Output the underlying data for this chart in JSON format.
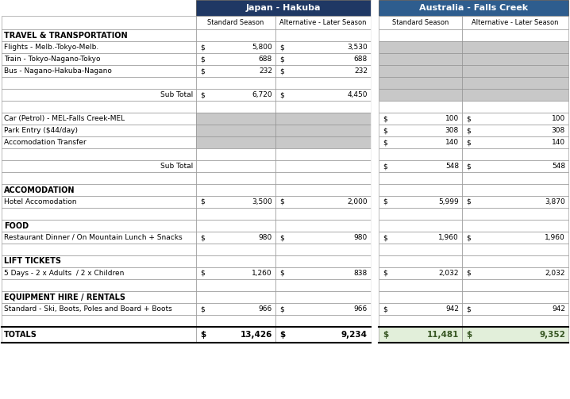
{
  "title_hakuba": "Japan - Hakuba",
  "title_falls": "Australia - Falls Creek",
  "col_headers": [
    "Standard Season",
    "Alternative - Later Season"
  ],
  "header_bg_hakuba": "#1F3864",
  "header_bg_falls": "#2E5D8E",
  "rows": [
    {
      "label": "TRAVEL & TRANSPORTATION",
      "bold": true,
      "hakuba_std": "",
      "hakuba_alt": "",
      "falls_std": "",
      "falls_alt": "",
      "hakuba_grey": false,
      "falls_grey": false,
      "right_label": false,
      "is_total": false,
      "is_subtotal": false,
      "top_border": false
    },
    {
      "label": "Flights - Melb.-Tokyo-Melb.",
      "bold": false,
      "hakuba_std": "5,800",
      "hakuba_alt": "3,530",
      "falls_std": "",
      "falls_alt": "",
      "hakuba_grey": false,
      "falls_grey": true,
      "right_label": false,
      "is_total": false,
      "is_subtotal": false,
      "top_border": false
    },
    {
      "label": "Train - Tokyo-Nagano-Tokyo",
      "bold": false,
      "hakuba_std": "688",
      "hakuba_alt": "688",
      "falls_std": "",
      "falls_alt": "",
      "hakuba_grey": false,
      "falls_grey": true,
      "right_label": false,
      "is_total": false,
      "is_subtotal": false,
      "top_border": false
    },
    {
      "label": "Bus - Nagano-Hakuba-Nagano",
      "bold": false,
      "hakuba_std": "232",
      "hakuba_alt": "232",
      "falls_std": "",
      "falls_alt": "",
      "hakuba_grey": false,
      "falls_grey": true,
      "right_label": false,
      "is_total": false,
      "is_subtotal": false,
      "top_border": false
    },
    {
      "label": "",
      "bold": false,
      "hakuba_std": "",
      "hakuba_alt": "",
      "falls_std": "",
      "falls_alt": "",
      "hakuba_grey": false,
      "falls_grey": true,
      "right_label": false,
      "is_total": false,
      "is_subtotal": false,
      "top_border": false
    },
    {
      "label": "Sub Total",
      "bold": false,
      "hakuba_std": "6,720",
      "hakuba_alt": "4,450",
      "falls_std": "",
      "falls_alt": "",
      "hakuba_grey": false,
      "falls_grey": true,
      "right_label": true,
      "is_total": false,
      "is_subtotal": true,
      "top_border": false
    },
    {
      "label": "",
      "bold": false,
      "hakuba_std": "",
      "hakuba_alt": "",
      "falls_std": "",
      "falls_alt": "",
      "hakuba_grey": false,
      "falls_grey": false,
      "right_label": false,
      "is_total": false,
      "is_subtotal": false,
      "top_border": false
    },
    {
      "label": "Car (Petrol) - MEL-Falls Creek-MEL",
      "bold": false,
      "hakuba_std": "",
      "hakuba_alt": "",
      "falls_std": "100",
      "falls_alt": "100",
      "hakuba_grey": true,
      "falls_grey": false,
      "right_label": false,
      "is_total": false,
      "is_subtotal": false,
      "top_border": false
    },
    {
      "label": "Park Entry ($44/day)",
      "bold": false,
      "hakuba_std": "",
      "hakuba_alt": "",
      "falls_std": "308",
      "falls_alt": "308",
      "hakuba_grey": true,
      "falls_grey": false,
      "right_label": false,
      "is_total": false,
      "is_subtotal": false,
      "top_border": false
    },
    {
      "label": "Accomodation Transfer",
      "bold": false,
      "hakuba_std": "",
      "hakuba_alt": "",
      "falls_std": "140",
      "falls_alt": "140",
      "hakuba_grey": true,
      "falls_grey": false,
      "right_label": false,
      "is_total": false,
      "is_subtotal": false,
      "top_border": false
    },
    {
      "label": "",
      "bold": false,
      "hakuba_std": "",
      "hakuba_alt": "",
      "falls_std": "",
      "falls_alt": "",
      "hakuba_grey": false,
      "falls_grey": false,
      "right_label": false,
      "is_total": false,
      "is_subtotal": false,
      "top_border": false
    },
    {
      "label": "Sub Total",
      "bold": false,
      "hakuba_std": "",
      "hakuba_alt": "",
      "falls_std": "548",
      "falls_alt": "548",
      "hakuba_grey": false,
      "falls_grey": false,
      "right_label": true,
      "is_total": false,
      "is_subtotal": true,
      "top_border": false
    },
    {
      "label": "",
      "bold": false,
      "hakuba_std": "",
      "hakuba_alt": "",
      "falls_std": "",
      "falls_alt": "",
      "hakuba_grey": false,
      "falls_grey": false,
      "right_label": false,
      "is_total": false,
      "is_subtotal": false,
      "top_border": true
    },
    {
      "label": "ACCOMODATION",
      "bold": true,
      "hakuba_std": "",
      "hakuba_alt": "",
      "falls_std": "",
      "falls_alt": "",
      "hakuba_grey": false,
      "falls_grey": false,
      "right_label": false,
      "is_total": false,
      "is_subtotal": false,
      "top_border": false
    },
    {
      "label": "Hotel Accomodation",
      "bold": false,
      "hakuba_std": "3,500",
      "hakuba_alt": "2,000",
      "falls_std": "5,999",
      "falls_alt": "3,870",
      "hakuba_grey": false,
      "falls_grey": false,
      "right_label": false,
      "is_total": false,
      "is_subtotal": false,
      "top_border": false
    },
    {
      "label": "",
      "bold": false,
      "hakuba_std": "",
      "hakuba_alt": "",
      "falls_std": "",
      "falls_alt": "",
      "hakuba_grey": false,
      "falls_grey": false,
      "right_label": false,
      "is_total": false,
      "is_subtotal": false,
      "top_border": true
    },
    {
      "label": "FOOD",
      "bold": true,
      "hakuba_std": "",
      "hakuba_alt": "",
      "falls_std": "",
      "falls_alt": "",
      "hakuba_grey": false,
      "falls_grey": false,
      "right_label": false,
      "is_total": false,
      "is_subtotal": false,
      "top_border": false
    },
    {
      "label": "Restaurant Dinner / On Mountain Lunch + Snacks",
      "bold": false,
      "hakuba_std": "980",
      "hakuba_alt": "980",
      "falls_std": "1,960",
      "falls_alt": "1,960",
      "hakuba_grey": false,
      "falls_grey": false,
      "right_label": false,
      "is_total": false,
      "is_subtotal": false,
      "top_border": false
    },
    {
      "label": "",
      "bold": false,
      "hakuba_std": "",
      "hakuba_alt": "",
      "falls_std": "",
      "falls_alt": "",
      "hakuba_grey": false,
      "falls_grey": false,
      "right_label": false,
      "is_total": false,
      "is_subtotal": false,
      "top_border": true
    },
    {
      "label": "LIFT TICKETS",
      "bold": true,
      "hakuba_std": "",
      "hakuba_alt": "",
      "falls_std": "",
      "falls_alt": "",
      "hakuba_grey": false,
      "falls_grey": false,
      "right_label": false,
      "is_total": false,
      "is_subtotal": false,
      "top_border": false
    },
    {
      "label": "5 Days - 2 x Adults  / 2 x Children",
      "bold": false,
      "hakuba_std": "1,260",
      "hakuba_alt": "838",
      "falls_std": "2,032",
      "falls_alt": "2,032",
      "hakuba_grey": false,
      "falls_grey": false,
      "right_label": false,
      "is_total": false,
      "is_subtotal": false,
      "top_border": false
    },
    {
      "label": "",
      "bold": false,
      "hakuba_std": "",
      "hakuba_alt": "",
      "falls_std": "",
      "falls_alt": "",
      "hakuba_grey": false,
      "falls_grey": false,
      "right_label": false,
      "is_total": false,
      "is_subtotal": false,
      "top_border": true
    },
    {
      "label": "EQUIPMENT HIRE / RENTALS",
      "bold": true,
      "hakuba_std": "",
      "hakuba_alt": "",
      "falls_std": "",
      "falls_alt": "",
      "hakuba_grey": false,
      "falls_grey": false,
      "right_label": false,
      "is_total": false,
      "is_subtotal": false,
      "top_border": false
    },
    {
      "label": "Standard - Ski, Boots, Poles and Board + Boots",
      "bold": false,
      "hakuba_std": "966",
      "hakuba_alt": "966",
      "falls_std": "942",
      "falls_alt": "942",
      "hakuba_grey": false,
      "falls_grey": false,
      "right_label": false,
      "is_total": false,
      "is_subtotal": false,
      "top_border": false
    },
    {
      "label": "",
      "bold": false,
      "hakuba_std": "",
      "hakuba_alt": "",
      "falls_std": "",
      "falls_alt": "",
      "hakuba_grey": false,
      "falls_grey": false,
      "right_label": false,
      "is_total": false,
      "is_subtotal": false,
      "top_border": true
    },
    {
      "label": "TOTALS",
      "bold": true,
      "hakuba_std": "13,426",
      "hakuba_alt": "9,234",
      "falls_std": "11,481",
      "falls_alt": "9,352",
      "hakuba_grey": false,
      "falls_grey": false,
      "right_label": false,
      "is_total": true,
      "is_subtotal": false,
      "top_border": false
    }
  ],
  "light_grey": "#C8C8C8",
  "total_falls_bg": "#E2EFDA",
  "total_falls_color": "#375623"
}
